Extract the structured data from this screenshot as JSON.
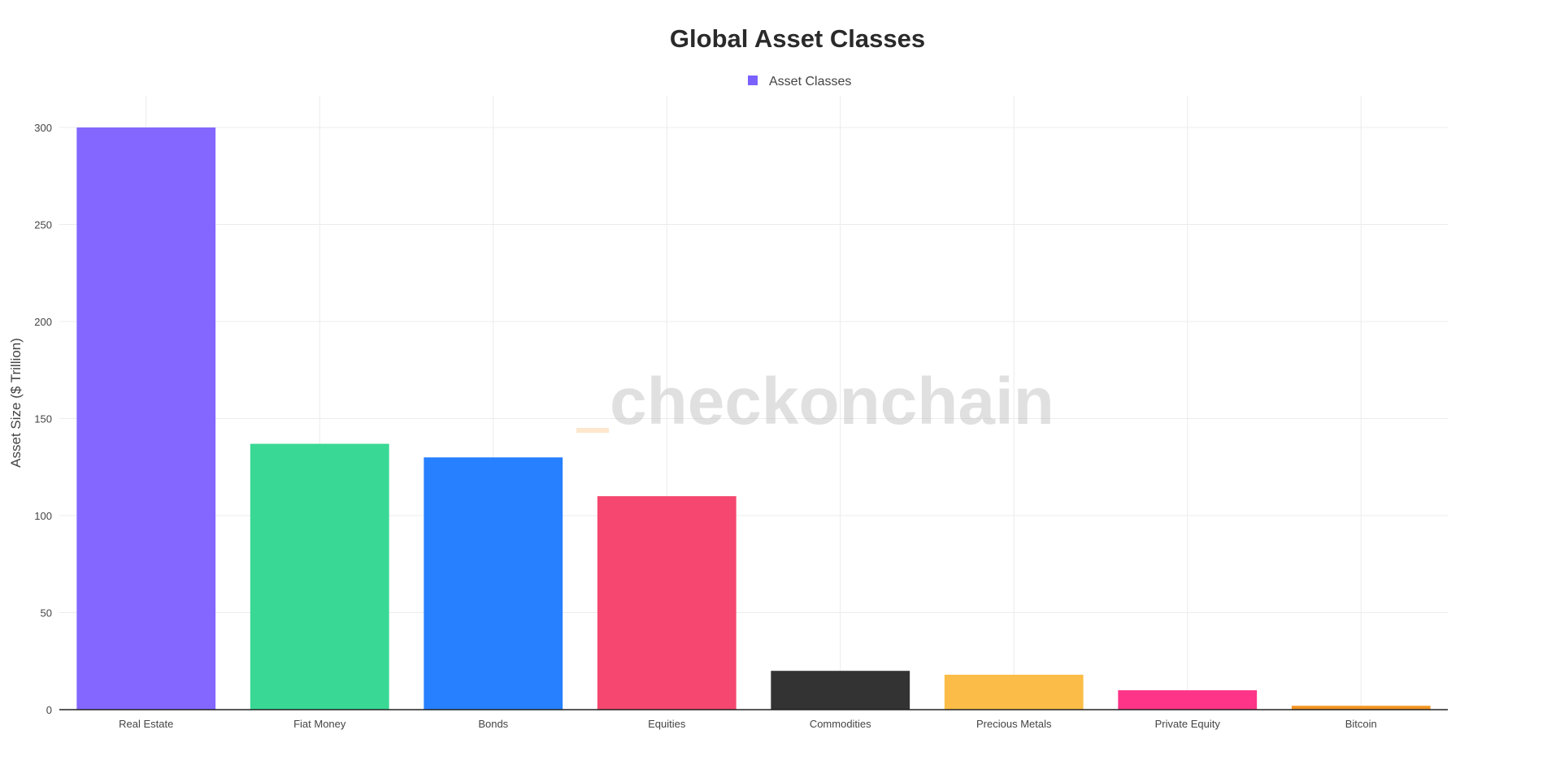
{
  "chart_data": {
    "type": "bar",
    "title": "Global Asset Classes",
    "ylabel": "Asset Size ($ Trillion)",
    "xlabel": "",
    "ylim": [
      0,
      300
    ],
    "yticks": [
      0,
      50,
      100,
      150,
      200,
      250,
      300
    ],
    "grid": true,
    "legend": {
      "position": "top-center",
      "entries": [
        "Asset Classes"
      ],
      "color": "#7b61ff"
    },
    "categories": [
      "Real Estate",
      "Fiat Money",
      "Bonds",
      "Equities",
      "Commodities",
      "Precious Metals",
      "Private Equity",
      "Bitcoin"
    ],
    "series": [
      {
        "name": "Asset Classes",
        "values": [
          300,
          137,
          130,
          110,
          20,
          18,
          10,
          2
        ],
        "colors": [
          "#8367ff",
          "#39d894",
          "#2680ff",
          "#f5476f",
          "#333333",
          "#fbbd47",
          "#fd3488",
          "#f39422"
        ]
      }
    ]
  },
  "watermark": {
    "text": "checkonchain",
    "accent_color": "#f7931a"
  }
}
